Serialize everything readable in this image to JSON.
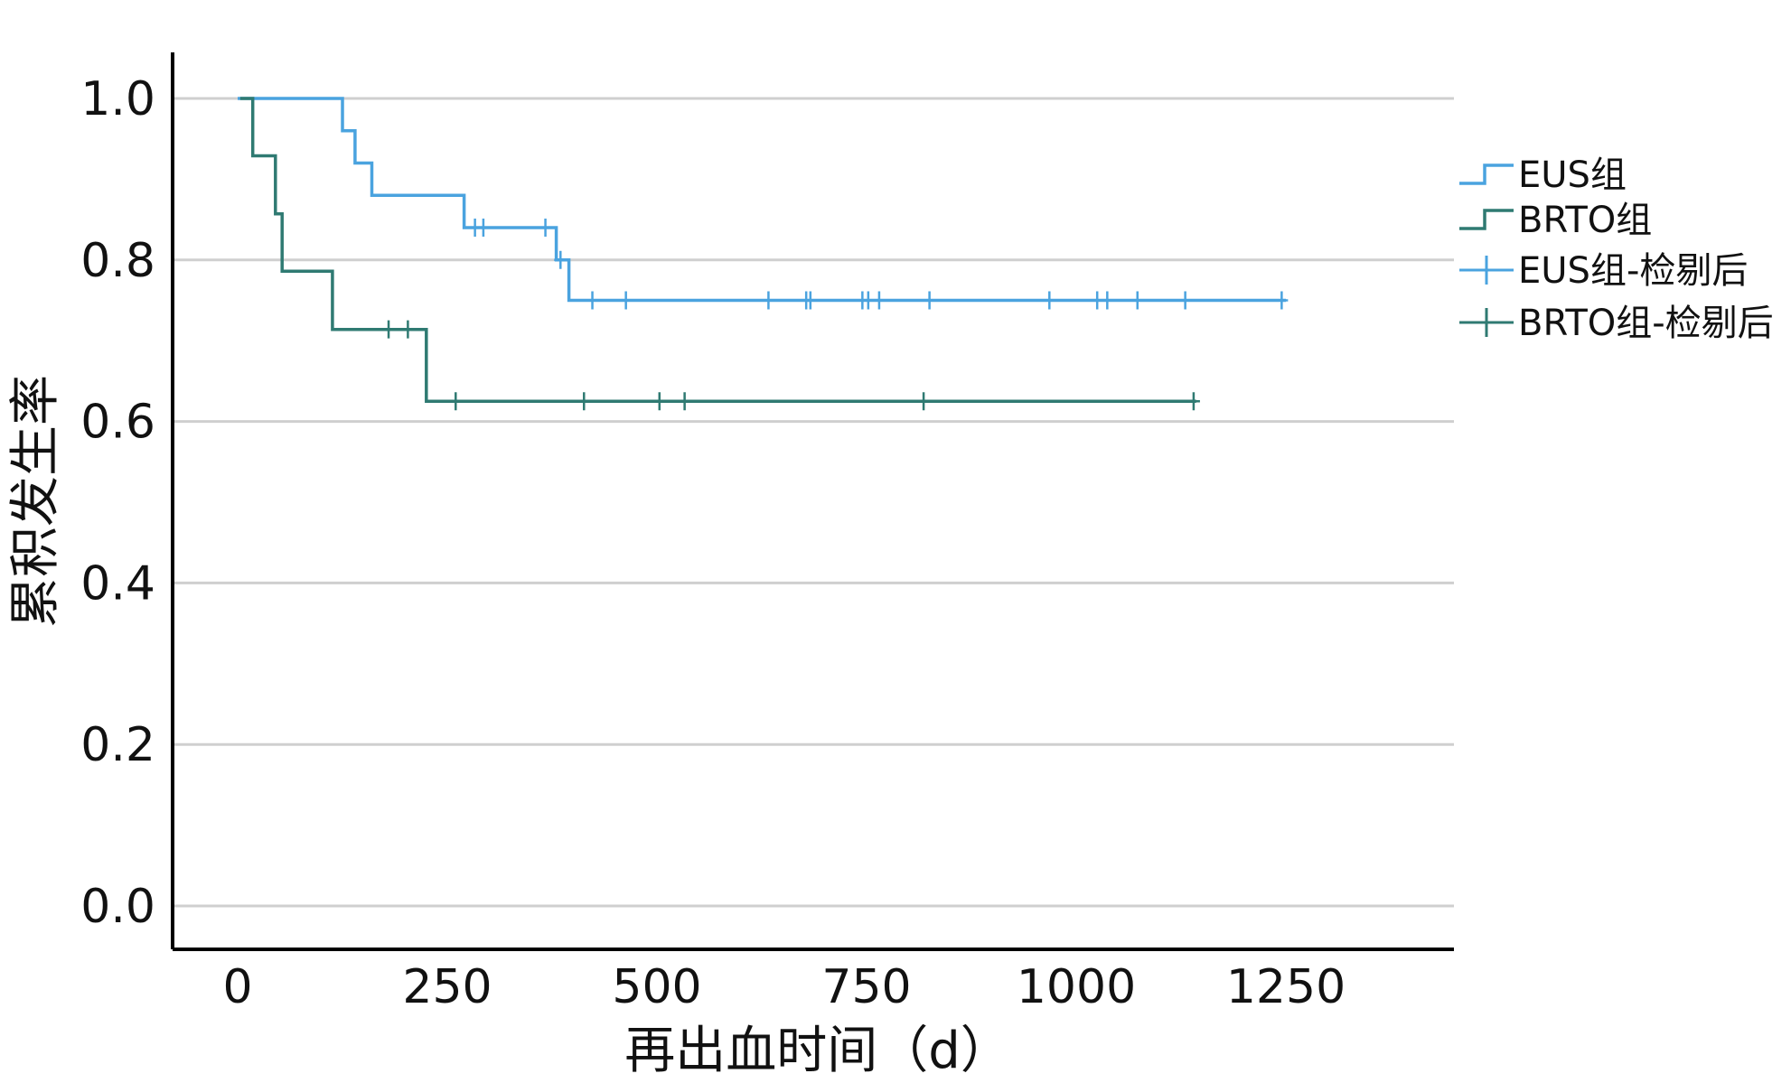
{
  "chart_data": {
    "type": "line",
    "subtype": "kaplan-meier-step",
    "title": "",
    "xlabel": "再出血时间（d）",
    "ylabel": "累积发生率",
    "xlim": [
      -80,
      1450
    ],
    "ylim": [
      -0.05,
      1.05
    ],
    "x_ticks": [
      "0",
      "250",
      "500",
      "750",
      "1000",
      "1250"
    ],
    "x_tick_values": [
      0,
      250,
      500,
      750,
      1000,
      1250
    ],
    "y_ticks": [
      "0.0",
      "0.2",
      "0.4",
      "0.6",
      "0.8",
      "1.0"
    ],
    "y_tick_values": [
      0.0,
      0.2,
      0.4,
      0.6,
      0.8,
      1.0
    ],
    "grid": "horizontal",
    "legend_position": "right",
    "series": [
      {
        "name": "EUS组",
        "color": "#4aa3df",
        "steps": [
          [
            0,
            1.0
          ],
          [
            125,
            1.0
          ],
          [
            125,
            0.96
          ],
          [
            140,
            0.96
          ],
          [
            140,
            0.92
          ],
          [
            160,
            0.92
          ],
          [
            160,
            0.88
          ],
          [
            270,
            0.88
          ],
          [
            270,
            0.84
          ],
          [
            380,
            0.84
          ],
          [
            380,
            0.8
          ],
          [
            395,
            0.8
          ],
          [
            395,
            0.75
          ],
          [
            1250,
            0.75
          ]
        ],
        "censored_name": "EUS组-检剔后",
        "censored": [
          [
            283,
            0.84
          ],
          [
            293,
            0.84
          ],
          [
            367,
            0.84
          ],
          [
            385,
            0.8
          ],
          [
            423,
            0.75
          ],
          [
            463,
            0.75
          ],
          [
            633,
            0.75
          ],
          [
            678,
            0.75
          ],
          [
            683,
            0.75
          ],
          [
            745,
            0.75
          ],
          [
            752,
            0.75
          ],
          [
            765,
            0.75
          ],
          [
            825,
            0.75
          ],
          [
            968,
            0.75
          ],
          [
            1025,
            0.75
          ],
          [
            1037,
            0.75
          ],
          [
            1073,
            0.75
          ],
          [
            1130,
            0.75
          ],
          [
            1245,
            0.75
          ]
        ]
      },
      {
        "name": "BRTO组",
        "color": "#2f7a72",
        "steps": [
          [
            3,
            1.0
          ],
          [
            18,
            1.0
          ],
          [
            18,
            0.929
          ],
          [
            45,
            0.929
          ],
          [
            45,
            0.857
          ],
          [
            53,
            0.857
          ],
          [
            53,
            0.786
          ],
          [
            113,
            0.786
          ],
          [
            113,
            0.714
          ],
          [
            225,
            0.714
          ],
          [
            225,
            0.625
          ],
          [
            1143,
            0.625
          ]
        ],
        "censored_name": "BRTO组-检剔后",
        "censored": [
          [
            180,
            0.714
          ],
          [
            203,
            0.714
          ],
          [
            260,
            0.625
          ],
          [
            413,
            0.625
          ],
          [
            503,
            0.625
          ],
          [
            533,
            0.625
          ],
          [
            818,
            0.625
          ],
          [
            1140,
            0.625
          ]
        ]
      }
    ]
  }
}
